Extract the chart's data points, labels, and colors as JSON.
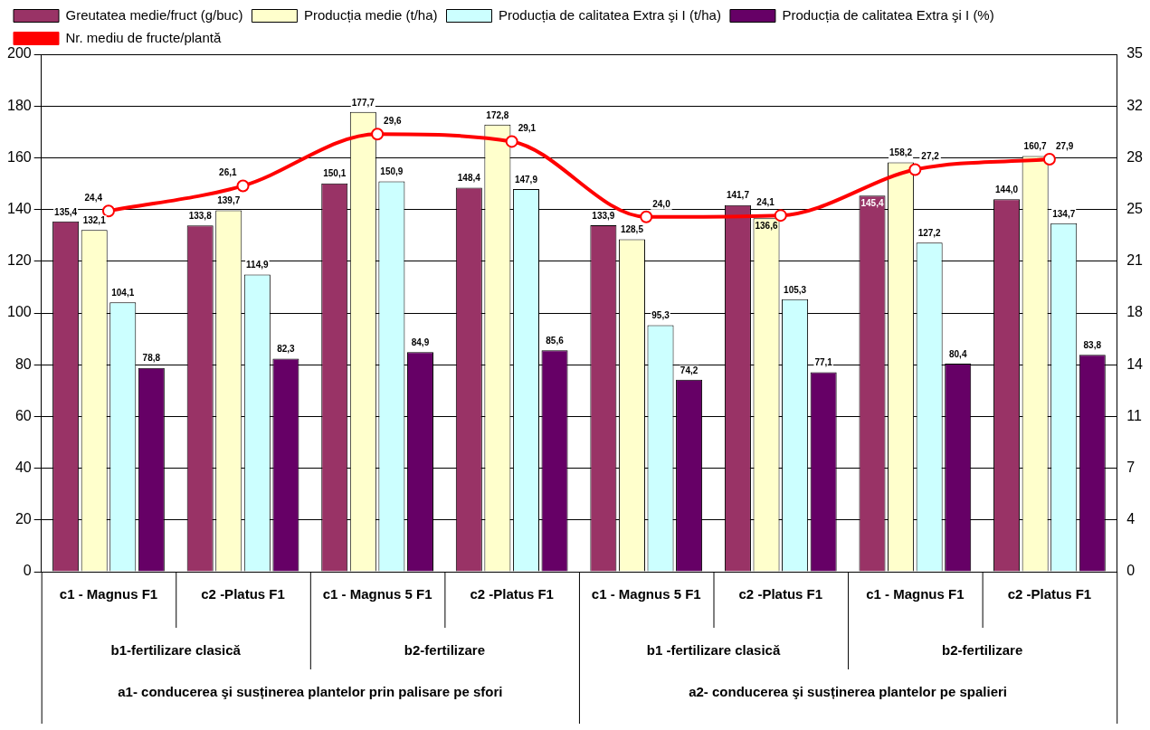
{
  "chart_data": {
    "type": "bar",
    "categories": [
      "c1 - Magnus F1",
      "c2 -Platus F1",
      "c1 - Magnus 5 F1",
      "c2 -Platus F1",
      "c1 - Magnus 5 F1",
      "c2 -Platus F1",
      "c1 - Magnus F1",
      "c2 -Platus F1"
    ],
    "series": [
      {
        "name": "Greutatea medie/fruct (g/buc)",
        "color": "#993366",
        "values": [
          135.4,
          133.8,
          150.1,
          148.4,
          133.9,
          141.7,
          145.4,
          144.0
        ],
        "value_labels": [
          "135,4",
          "133,8",
          "150,1",
          "148,4",
          "133,9",
          "141,7",
          "145,4",
          "144,0"
        ]
      },
      {
        "name": "Producția medie (t/ha)",
        "color": "#ffffcc",
        "values": [
          132.1,
          139.7,
          177.7,
          172.8,
          128.5,
          136.6,
          158.2,
          160.7
        ],
        "value_labels": [
          "132,1",
          "139,7",
          "177,7",
          "172,8",
          "128,5",
          "136,6",
          "158,2",
          "160,7"
        ]
      },
      {
        "name": "Producția de calitatea Extra şi I (t/ha)",
        "color": "#ccffff",
        "values": [
          104.1,
          114.9,
          150.9,
          147.9,
          95.3,
          105.3,
          127.2,
          134.7
        ],
        "value_labels": [
          "104,1",
          "114,9",
          "150,9",
          "147,9",
          "95,3",
          "105,3",
          "127,2",
          "134,7"
        ]
      },
      {
        "name": "Producția de calitatea Extra şi I (%)",
        "color": "#660066",
        "values": [
          78.8,
          82.3,
          84.9,
          85.6,
          74.2,
          77.1,
          80.4,
          83.8
        ],
        "value_labels": [
          "78,8",
          "82,3",
          "84,9",
          "85,6",
          "74,2",
          "77,1",
          "80,4",
          "83,8"
        ]
      },
      {
        "name": "Nr. mediu de fructe/plantă",
        "type": "line",
        "axis": "y2",
        "color": "#ff0000",
        "values": [
          24.4,
          26.1,
          29.6,
          29.1,
          24.0,
          24.1,
          27.2,
          27.9
        ],
        "value_labels": [
          "24,4",
          "26,1",
          "29,6",
          "29,1",
          "24,0",
          "24,1",
          "27,2",
          "27,9"
        ]
      }
    ],
    "ylim": [
      0,
      200
    ],
    "yticks": [
      0,
      20,
      40,
      60,
      80,
      100,
      120,
      140,
      160,
      180,
      200
    ],
    "y2lim": [
      0,
      35
    ],
    "y2ticks": [
      0,
      {
        "value": 3.5,
        "label": "4"
      },
      7,
      {
        "value": 10.5,
        "label": "11"
      },
      14,
      {
        "value": 17.5,
        "label": "18"
      },
      21,
      {
        "value": 24.5,
        "label": "25"
      },
      28,
      {
        "value": 31.5,
        "label": "32"
      },
      35
    ],
    "annotations": [
      "b1-fertilizare clasică",
      "b2-fertilizare",
      "b1 -fertilizare clasică",
      "b2-fertilizare",
      "a1- conducerea şi susținerea plantelor prin palisare pe sfori",
      "a2- conducerea şi susținerea plantelor pe spalieri"
    ],
    "marker": "circle",
    "legend": "top",
    "grid": "y"
  }
}
